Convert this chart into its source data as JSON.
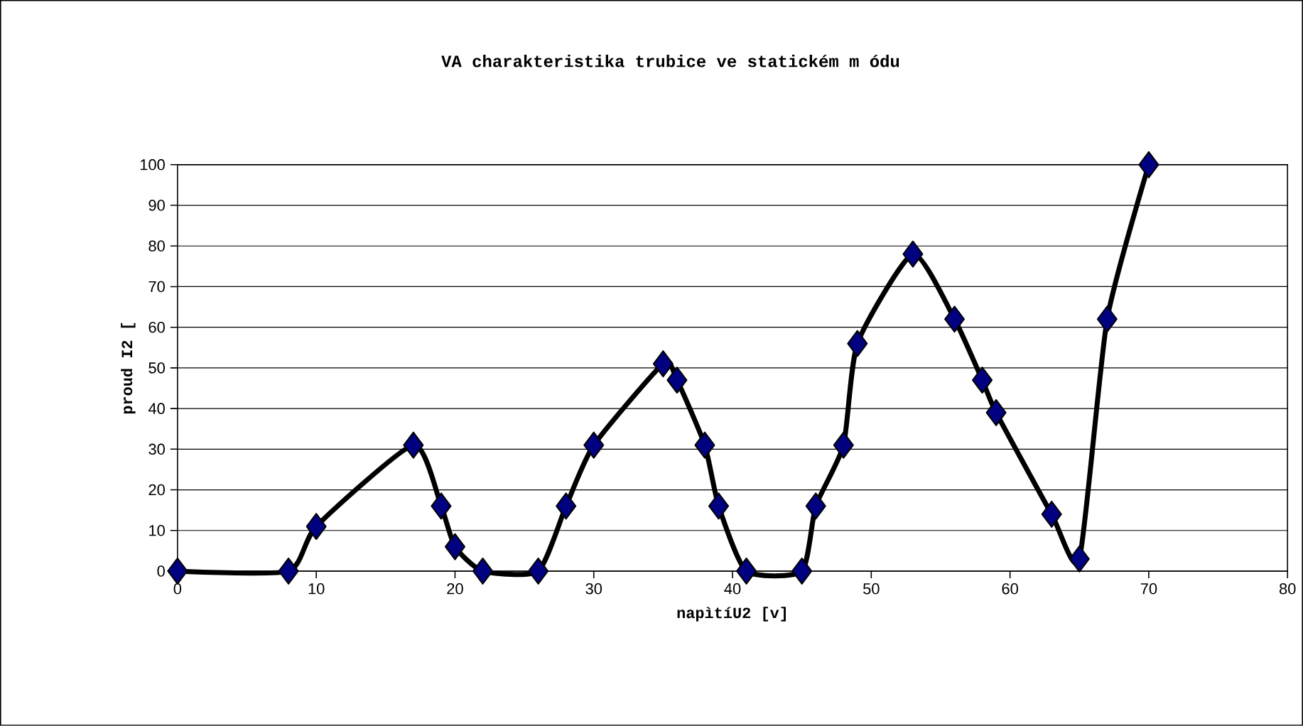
{
  "chart_data": {
    "type": "line",
    "title": "VA charakteristika trubice ve statickém m ódu",
    "xlabel": "napìtíU2 [v]",
    "ylabel": "proud I2 [",
    "x": [
      0,
      8,
      10,
      17,
      19,
      20,
      22,
      26,
      28,
      30,
      35,
      36,
      38,
      39,
      41,
      45,
      46,
      48,
      49,
      53,
      56,
      58,
      59,
      63,
      65,
      67,
      70
    ],
    "series": [
      {
        "color": "#000080",
        "values": [
          0,
          0,
          11,
          31,
          16,
          6,
          0,
          0,
          16,
          31,
          51,
          47,
          31,
          16,
          0,
          0,
          16,
          31,
          56,
          78,
          62,
          47,
          39,
          14,
          3,
          62,
          100
        ]
      }
    ],
    "xlim": [
      0,
      80
    ],
    "xticks": [
      0,
      10,
      20,
      30,
      40,
      50,
      60,
      70,
      80
    ],
    "ylim": [
      0,
      100
    ],
    "yticks": [
      0,
      10,
      20,
      30,
      40,
      50,
      60,
      70,
      80,
      90,
      100
    ],
    "grid": "y",
    "marker": "diamond",
    "line_style": "solid"
  }
}
